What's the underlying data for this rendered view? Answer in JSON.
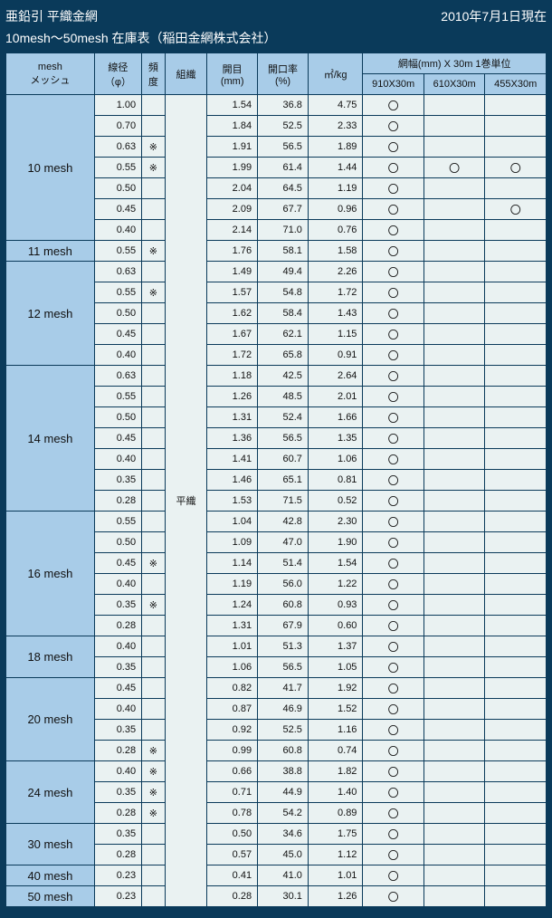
{
  "header": {
    "title": "亜鉛引 平織金網",
    "date": "2010年7月1日現在",
    "subtitle": "10mesh～50mesh 在庫表（稲田金網株式会社）"
  },
  "columns": {
    "mesh_top": "mesh",
    "mesh_sub": "メッシュ",
    "dia_top": "線径",
    "dia_sub": "（φ）",
    "freq_top": "頻",
    "freq_sub": "度",
    "org": "組織",
    "open_top": "開目",
    "open_sub": "(mm)",
    "rate_top": "開口率",
    "rate_sub": "(%)",
    "mkg": "㎡/kg",
    "width_top": "網幅(mm) X 30m  1巻単位",
    "w1": "910X30m",
    "w2": "610X30m",
    "w3": "455X30m"
  },
  "org_label": "平織",
  "groups": [
    {
      "mesh": "10 mesh",
      "rowspan": 7,
      "rows": [
        {
          "dia": "1.00",
          "freq": "",
          "open": "1.54",
          "rate": "36.8",
          "mkg": "4.75",
          "w1": "〇",
          "w2": "",
          "w3": ""
        },
        {
          "dia": "0.70",
          "freq": "",
          "open": "1.84",
          "rate": "52.5",
          "mkg": "2.33",
          "w1": "〇",
          "w2": "",
          "w3": ""
        },
        {
          "dia": "0.63",
          "freq": "※",
          "open": "1.91",
          "rate": "56.5",
          "mkg": "1.89",
          "w1": "〇",
          "w2": "",
          "w3": ""
        },
        {
          "dia": "0.55",
          "freq": "※",
          "open": "1.99",
          "rate": "61.4",
          "mkg": "1.44",
          "w1": "〇",
          "w2": "〇",
          "w3": "〇"
        },
        {
          "dia": "0.50",
          "freq": "",
          "open": "2.04",
          "rate": "64.5",
          "mkg": "1.19",
          "w1": "〇",
          "w2": "",
          "w3": ""
        },
        {
          "dia": "0.45",
          "freq": "",
          "open": "2.09",
          "rate": "67.7",
          "mkg": "0.96",
          "w1": "〇",
          "w2": "",
          "w3": "〇"
        },
        {
          "dia": "0.40",
          "freq": "",
          "open": "2.14",
          "rate": "71.0",
          "mkg": "0.76",
          "w1": "〇",
          "w2": "",
          "w3": ""
        }
      ]
    },
    {
      "mesh": "11 mesh",
      "rowspan": 1,
      "rows": [
        {
          "dia": "0.55",
          "freq": "※",
          "open": "1.76",
          "rate": "58.1",
          "mkg": "1.58",
          "w1": "〇",
          "w2": "",
          "w3": ""
        }
      ]
    },
    {
      "mesh": "12 mesh",
      "rowspan": 5,
      "rows": [
        {
          "dia": "0.63",
          "freq": "",
          "open": "1.49",
          "rate": "49.4",
          "mkg": "2.26",
          "w1": "〇",
          "w2": "",
          "w3": ""
        },
        {
          "dia": "0.55",
          "freq": "※",
          "open": "1.57",
          "rate": "54.8",
          "mkg": "1.72",
          "w1": "〇",
          "w2": "",
          "w3": ""
        },
        {
          "dia": "0.50",
          "freq": "",
          "open": "1.62",
          "rate": "58.4",
          "mkg": "1.43",
          "w1": "〇",
          "w2": "",
          "w3": ""
        },
        {
          "dia": "0.45",
          "freq": "",
          "open": "1.67",
          "rate": "62.1",
          "mkg": "1.15",
          "w1": "〇",
          "w2": "",
          "w3": ""
        },
        {
          "dia": "0.40",
          "freq": "",
          "open": "1.72",
          "rate": "65.8",
          "mkg": "0.91",
          "w1": "〇",
          "w2": "",
          "w3": ""
        }
      ]
    },
    {
      "mesh": "14 mesh",
      "rowspan": 7,
      "rows": [
        {
          "dia": "0.63",
          "freq": "",
          "open": "1.18",
          "rate": "42.5",
          "mkg": "2.64",
          "w1": "〇",
          "w2": "",
          "w3": ""
        },
        {
          "dia": "0.55",
          "freq": "",
          "open": "1.26",
          "rate": "48.5",
          "mkg": "2.01",
          "w1": "〇",
          "w2": "",
          "w3": ""
        },
        {
          "dia": "0.50",
          "freq": "",
          "open": "1.31",
          "rate": "52.4",
          "mkg": "1.66",
          "w1": "〇",
          "w2": "",
          "w3": ""
        },
        {
          "dia": "0.45",
          "freq": "",
          "open": "1.36",
          "rate": "56.5",
          "mkg": "1.35",
          "w1": "〇",
          "w2": "",
          "w3": ""
        },
        {
          "dia": "0.40",
          "freq": "",
          "open": "1.41",
          "rate": "60.7",
          "mkg": "1.06",
          "w1": "〇",
          "w2": "",
          "w3": ""
        },
        {
          "dia": "0.35",
          "freq": "",
          "open": "1.46",
          "rate": "65.1",
          "mkg": "0.81",
          "w1": "〇",
          "w2": "",
          "w3": ""
        },
        {
          "dia": "0.28",
          "freq": "",
          "open": "1.53",
          "rate": "71.5",
          "mkg": "0.52",
          "w1": "〇",
          "w2": "",
          "w3": ""
        }
      ]
    },
    {
      "mesh": "16 mesh",
      "rowspan": 6,
      "rows": [
        {
          "dia": "0.55",
          "freq": "",
          "open": "1.04",
          "rate": "42.8",
          "mkg": "2.30",
          "w1": "〇",
          "w2": "",
          "w3": ""
        },
        {
          "dia": "0.50",
          "freq": "",
          "open": "1.09",
          "rate": "47.0",
          "mkg": "1.90",
          "w1": "〇",
          "w2": "",
          "w3": ""
        },
        {
          "dia": "0.45",
          "freq": "※",
          "open": "1.14",
          "rate": "51.4",
          "mkg": "1.54",
          "w1": "〇",
          "w2": "",
          "w3": ""
        },
        {
          "dia": "0.40",
          "freq": "",
          "open": "1.19",
          "rate": "56.0",
          "mkg": "1.22",
          "w1": "〇",
          "w2": "",
          "w3": ""
        },
        {
          "dia": "0.35",
          "freq": "※",
          "open": "1.24",
          "rate": "60.8",
          "mkg": "0.93",
          "w1": "〇",
          "w2": "",
          "w3": ""
        },
        {
          "dia": "0.28",
          "freq": "",
          "open": "1.31",
          "rate": "67.9",
          "mkg": "0.60",
          "w1": "〇",
          "w2": "",
          "w3": ""
        }
      ]
    },
    {
      "mesh": "18 mesh",
      "rowspan": 2,
      "rows": [
        {
          "dia": "0.40",
          "freq": "",
          "open": "1.01",
          "rate": "51.3",
          "mkg": "1.37",
          "w1": "〇",
          "w2": "",
          "w3": ""
        },
        {
          "dia": "0.35",
          "freq": "",
          "open": "1.06",
          "rate": "56.5",
          "mkg": "1.05",
          "w1": "〇",
          "w2": "",
          "w3": ""
        }
      ]
    },
    {
      "mesh": "20 mesh",
      "rowspan": 4,
      "rows": [
        {
          "dia": "0.45",
          "freq": "",
          "open": "0.82",
          "rate": "41.7",
          "mkg": "1.92",
          "w1": "〇",
          "w2": "",
          "w3": ""
        },
        {
          "dia": "0.40",
          "freq": "",
          "open": "0.87",
          "rate": "46.9",
          "mkg": "1.52",
          "w1": "〇",
          "w2": "",
          "w3": ""
        },
        {
          "dia": "0.35",
          "freq": "",
          "open": "0.92",
          "rate": "52.5",
          "mkg": "1.16",
          "w1": "〇",
          "w2": "",
          "w3": ""
        },
        {
          "dia": "0.28",
          "freq": "※",
          "open": "0.99",
          "rate": "60.8",
          "mkg": "0.74",
          "w1": "〇",
          "w2": "",
          "w3": ""
        }
      ]
    },
    {
      "mesh": "24 mesh",
      "rowspan": 3,
      "rows": [
        {
          "dia": "0.40",
          "freq": "※",
          "open": "0.66",
          "rate": "38.8",
          "mkg": "1.82",
          "w1": "〇",
          "w2": "",
          "w3": ""
        },
        {
          "dia": "0.35",
          "freq": "※",
          "open": "0.71",
          "rate": "44.9",
          "mkg": "1.40",
          "w1": "〇",
          "w2": "",
          "w3": ""
        },
        {
          "dia": "0.28",
          "freq": "※",
          "open": "0.78",
          "rate": "54.2",
          "mkg": "0.89",
          "w1": "〇",
          "w2": "",
          "w3": ""
        }
      ]
    },
    {
      "mesh": "30 mesh",
      "rowspan": 2,
      "rows": [
        {
          "dia": "0.35",
          "freq": "",
          "open": "0.50",
          "rate": "34.6",
          "mkg": "1.75",
          "w1": "〇",
          "w2": "",
          "w3": ""
        },
        {
          "dia": "0.28",
          "freq": "",
          "open": "0.57",
          "rate": "45.0",
          "mkg": "1.12",
          "w1": "〇",
          "w2": "",
          "w3": ""
        }
      ]
    },
    {
      "mesh": "40 mesh",
      "rowspan": 1,
      "rows": [
        {
          "dia": "0.23",
          "freq": "",
          "open": "0.41",
          "rate": "41.0",
          "mkg": "1.01",
          "w1": "〇",
          "w2": "",
          "w3": ""
        }
      ]
    },
    {
      "mesh": "50 mesh",
      "rowspan": 1,
      "rows": [
        {
          "dia": "0.23",
          "freq": "",
          "open": "0.28",
          "rate": "30.1",
          "mkg": "1.26",
          "w1": "〇",
          "w2": "",
          "w3": ""
        }
      ]
    }
  ],
  "total_rows": 39
}
